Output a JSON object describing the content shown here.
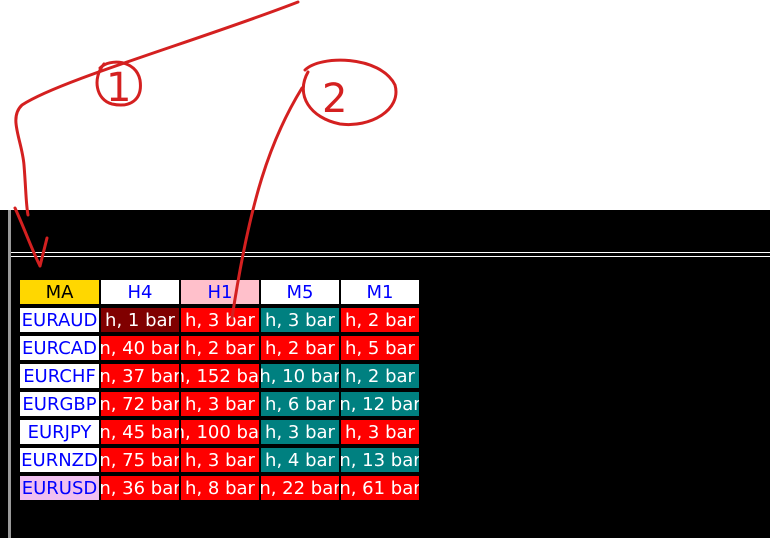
{
  "annotations": [
    "1",
    "2"
  ],
  "table": {
    "header": [
      {
        "text": "MA",
        "color": "#ffd700",
        "text_color": "#000000"
      },
      {
        "text": "H4",
        "color": "#ffffff",
        "text_color": "#0000ff"
      },
      {
        "text": "H1",
        "color": "#ffc0cb",
        "text_color": "#0000ff"
      },
      {
        "text": "M5",
        "color": "#ffffff",
        "text_color": "#0000ff"
      },
      {
        "text": "M1",
        "color": "#ffffff",
        "text_color": "#0000ff"
      }
    ],
    "rows": [
      {
        "symbol": "EURAUD",
        "symbol_color": "#ffffff",
        "cells": [
          {
            "text": "h, 1 bar",
            "color": "#800000"
          },
          {
            "text": "h, 3 bar",
            "color": "#ff0000"
          },
          {
            "text": "h, 3 bar",
            "color": "#008080"
          },
          {
            "text": "h, 2 bar",
            "color": "#ff0000"
          }
        ]
      },
      {
        "symbol": "EURCAD",
        "symbol_color": "#ffffff",
        "cells": [
          {
            "text": "n, 40 bar",
            "color": "#ff0000"
          },
          {
            "text": "h, 2 bar",
            "color": "#ff0000"
          },
          {
            "text": "h, 2 bar",
            "color": "#ff0000"
          },
          {
            "text": "h, 5 bar",
            "color": "#ff0000"
          }
        ]
      },
      {
        "symbol": "EURCHF",
        "symbol_color": "#ffffff",
        "cells": [
          {
            "text": "n, 37 bar",
            "color": "#ff0000"
          },
          {
            "text": "n, 152 bar",
            "color": "#ff0000"
          },
          {
            "text": "h, 10 bar",
            "color": "#008080"
          },
          {
            "text": "h, 2 bar",
            "color": "#008080"
          }
        ]
      },
      {
        "symbol": "EURGBP",
        "symbol_color": "#ffffff",
        "cells": [
          {
            "text": "n, 72 bar",
            "color": "#ff0000"
          },
          {
            "text": "h, 3 bar",
            "color": "#ff0000"
          },
          {
            "text": "h, 6 bar",
            "color": "#008080"
          },
          {
            "text": "n, 12 bar",
            "color": "#008080"
          }
        ]
      },
      {
        "symbol": "EURJPY",
        "symbol_color": "#ffffff",
        "cells": [
          {
            "text": "n, 45 bar",
            "color": "#ff0000"
          },
          {
            "text": "n, 100 bar",
            "color": "#ff0000"
          },
          {
            "text": "h, 3 bar",
            "color": "#008080"
          },
          {
            "text": "h, 3 bar",
            "color": "#ff0000"
          }
        ]
      },
      {
        "symbol": "EURNZD",
        "symbol_color": "#ffffff",
        "cells": [
          {
            "text": "n, 75 bar",
            "color": "#ff0000"
          },
          {
            "text": "h, 3 bar",
            "color": "#ff0000"
          },
          {
            "text": "h, 4 bar",
            "color": "#008080"
          },
          {
            "text": "n, 13 bar",
            "color": "#008080"
          }
        ]
      },
      {
        "symbol": "EURUSD",
        "symbol_color": "#f0c0f0",
        "cells": [
          {
            "text": "n, 36 bar",
            "color": "#ff0000"
          },
          {
            "text": "h, 8 bar",
            "color": "#ff0000"
          },
          {
            "text": "n, 22 bar",
            "color": "#ff0000"
          },
          {
            "text": "n, 61 bar",
            "color": "#ff0000"
          }
        ]
      }
    ]
  }
}
